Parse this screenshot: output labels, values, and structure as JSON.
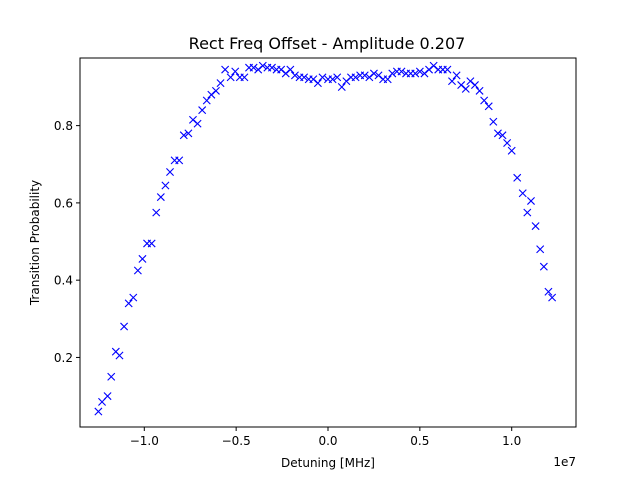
{
  "chart_data": {
    "type": "scatter",
    "title": "Rect Freq Offset - Amplitude 0.207",
    "xlabel": "Detuning [MHz]",
    "ylabel": "Transition Probability",
    "x_offset_label": "1e7",
    "xlim": [
      -13500000,
      13500000
    ],
    "ylim": [
      0.02,
      0.975
    ],
    "grid": false,
    "legend": "none",
    "x_ticks": [
      -10000000,
      -5000000,
      0,
      5000000,
      10000000
    ],
    "x_tick_labels": [
      "−1.0",
      "−0.5",
      "0.0",
      "0.5",
      "1.0"
    ],
    "y_ticks": [
      0.2,
      0.4,
      0.6,
      0.8
    ],
    "y_tick_labels": [
      "0.2",
      "0.4",
      "0.6",
      "0.8"
    ],
    "marker": "x",
    "series": [
      {
        "color": "#0000ff",
        "points": [
          [
            -12500000,
            0.06
          ],
          [
            -12300000,
            0.085
          ],
          [
            -12000000,
            0.1
          ],
          [
            -11800000,
            0.15
          ],
          [
            -11550000,
            0.215
          ],
          [
            -11350000,
            0.205
          ],
          [
            -11100000,
            0.28
          ],
          [
            -10850000,
            0.34
          ],
          [
            -10600000,
            0.355
          ],
          [
            -10350000,
            0.425
          ],
          [
            -10100000,
            0.455
          ],
          [
            -9850000,
            0.495
          ],
          [
            -9600000,
            0.495
          ],
          [
            -9350000,
            0.575
          ],
          [
            -9100000,
            0.615
          ],
          [
            -8850000,
            0.645
          ],
          [
            -8600000,
            0.68
          ],
          [
            -8350000,
            0.71
          ],
          [
            -8100000,
            0.71
          ],
          [
            -7850000,
            0.775
          ],
          [
            -7600000,
            0.78
          ],
          [
            -7350000,
            0.815
          ],
          [
            -7100000,
            0.805
          ],
          [
            -6850000,
            0.84
          ],
          [
            -6600000,
            0.865
          ],
          [
            -6350000,
            0.88
          ],
          [
            -6100000,
            0.89
          ],
          [
            -5850000,
            0.91
          ],
          [
            -5600000,
            0.945
          ],
          [
            -5300000,
            0.925
          ],
          [
            -5050000,
            0.94
          ],
          [
            -4800000,
            0.925
          ],
          [
            -4550000,
            0.925
          ],
          [
            -4300000,
            0.95
          ],
          [
            -4050000,
            0.95
          ],
          [
            -3800000,
            0.945
          ],
          [
            -3550000,
            0.955
          ],
          [
            -3300000,
            0.95
          ],
          [
            -3050000,
            0.95
          ],
          [
            -2800000,
            0.945
          ],
          [
            -2550000,
            0.945
          ],
          [
            -2300000,
            0.935
          ],
          [
            -2050000,
            0.945
          ],
          [
            -1800000,
            0.93
          ],
          [
            -1550000,
            0.925
          ],
          [
            -1300000,
            0.925
          ],
          [
            -1050000,
            0.92
          ],
          [
            -800000,
            0.92
          ],
          [
            -550000,
            0.91
          ],
          [
            -300000,
            0.925
          ],
          [
            0,
            0.92
          ],
          [
            250000,
            0.92
          ],
          [
            500000,
            0.925
          ],
          [
            750000,
            0.9
          ],
          [
            1000000,
            0.915
          ],
          [
            1250000,
            0.925
          ],
          [
            1500000,
            0.925
          ],
          [
            1750000,
            0.93
          ],
          [
            2000000,
            0.93
          ],
          [
            2250000,
            0.925
          ],
          [
            2500000,
            0.935
          ],
          [
            2750000,
            0.93
          ],
          [
            3000000,
            0.92
          ],
          [
            3250000,
            0.92
          ],
          [
            3500000,
            0.935
          ],
          [
            3750000,
            0.94
          ],
          [
            4000000,
            0.94
          ],
          [
            4250000,
            0.935
          ],
          [
            4500000,
            0.935
          ],
          [
            4750000,
            0.935
          ],
          [
            5000000,
            0.94
          ],
          [
            5250000,
            0.935
          ],
          [
            5500000,
            0.945
          ],
          [
            5750000,
            0.955
          ],
          [
            6000000,
            0.945
          ],
          [
            6250000,
            0.945
          ],
          [
            6500000,
            0.945
          ],
          [
            6750000,
            0.915
          ],
          [
            7000000,
            0.93
          ],
          [
            7250000,
            0.905
          ],
          [
            7500000,
            0.895
          ],
          [
            7750000,
            0.915
          ],
          [
            8000000,
            0.905
          ],
          [
            8250000,
            0.89
          ],
          [
            8500000,
            0.865
          ],
          [
            8750000,
            0.85
          ],
          [
            9000000,
            0.81
          ],
          [
            9250000,
            0.78
          ],
          [
            9500000,
            0.775
          ],
          [
            9750000,
            0.755
          ],
          [
            10000000,
            0.735
          ],
          [
            10300000,
            0.665
          ],
          [
            10600000,
            0.625
          ],
          [
            10850000,
            0.575
          ],
          [
            11050000,
            0.605
          ],
          [
            11300000,
            0.54
          ],
          [
            11550000,
            0.48
          ],
          [
            11750000,
            0.435
          ],
          [
            12000000,
            0.37
          ],
          [
            12200000,
            0.355
          ]
        ]
      }
    ]
  }
}
